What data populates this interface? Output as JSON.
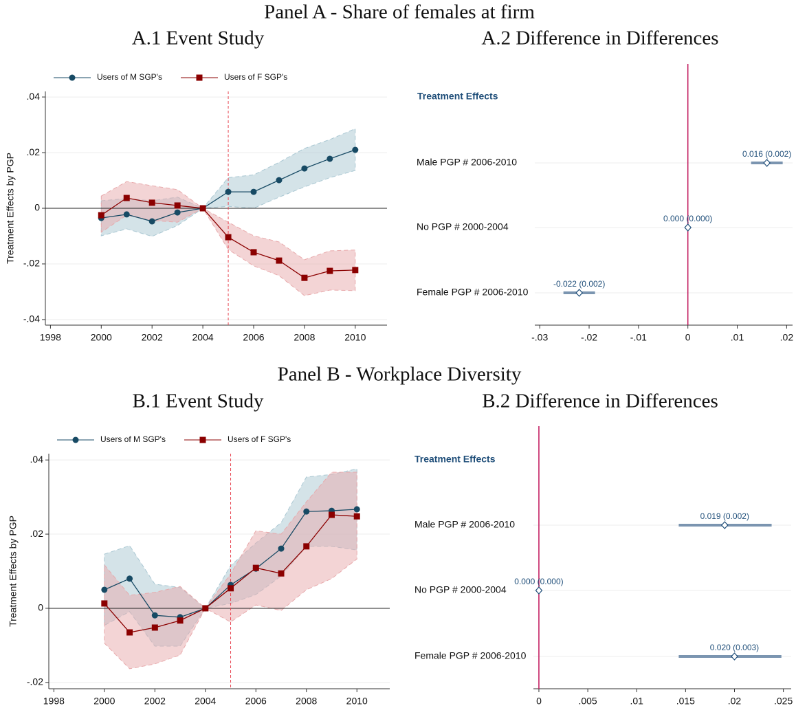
{
  "panels": [
    {
      "title": "Panel A - Share of females at firm"
    },
    {
      "title": "Panel B - Workplace Diversity"
    }
  ],
  "chart_data": [
    {
      "type": "event_study",
      "title": "A.1 Event Study",
      "y_label": "Treatment Effects by PGP",
      "x": [
        2000,
        2001,
        2002,
        2003,
        2004,
        2005,
        2006,
        2007,
        2008,
        2009,
        2010
      ],
      "series": [
        {
          "name": "Users of M SGP's",
          "color": "#174a64",
          "band_color": "#a9c7d2",
          "marker": "circle",
          "values": [
            -0.0035,
            -0.0022,
            -0.0047,
            -0.0015,
            0,
            0.0059,
            0.0059,
            0.0101,
            0.0143,
            0.0178,
            0.021
          ],
          "lower": [
            -0.0099,
            -0.0074,
            -0.0101,
            -0.0062,
            0,
            0.0007,
            0,
            0.004,
            0.0077,
            0.011,
            0.0136
          ],
          "upper": [
            0.0027,
            0.0035,
            0.0027,
            0.004,
            0,
            0.011,
            0.012,
            0.0165,
            0.0215,
            0.0247,
            0.0286
          ]
        },
        {
          "name": "Users of F SGP's",
          "color": "#8b0000",
          "band_color": "#e8a9ab",
          "marker": "square",
          "values": [
            -0.0025,
            0.0037,
            0.002,
            0.001,
            0,
            -0.0104,
            -0.0158,
            -0.0188,
            -0.025,
            -0.0225,
            -0.0222
          ],
          "lower": [
            -0.0086,
            -0.0025,
            -0.0044,
            -0.005,
            0,
            -0.0148,
            -0.0207,
            -0.0242,
            -0.0314,
            -0.0294,
            -0.0296
          ],
          "upper": [
            0.0044,
            0.0096,
            0.0081,
            0.0067,
            0,
            -0.005,
            -0.0099,
            -0.0121,
            -0.0185,
            -0.0153,
            -0.015
          ]
        }
      ],
      "xlim": [
        1997.8,
        2011.25
      ],
      "xticks": [
        1998,
        2000,
        2002,
        2004,
        2006,
        2008,
        2010
      ],
      "ylim": [
        -0.042,
        0.042
      ],
      "yticks": [
        {
          "value": 0.04,
          "label": ".04"
        },
        {
          "value": 0.02,
          "label": ".02"
        },
        0,
        {
          "value": -0.02,
          "label": "-.02"
        },
        {
          "value": -0.04,
          "label": "-.04"
        }
      ],
      "grid": true,
      "hline": 0,
      "vline": 2005,
      "vline_color": "#e8434f",
      "legend": "top"
    },
    {
      "type": "coefficient",
      "title": "A.2 Difference in Differences",
      "header": "Treatment Effects",
      "categories": [
        "Male PGP # 2006-2010",
        "No PGP # 2000-2004",
        "Female PGP # 2006-2010"
      ],
      "values": [
        0.016,
        0,
        -0.022
      ],
      "value_labels": [
        "0.016 (0.002)",
        "0.000 (0.000)",
        "-0.022 (0.002)"
      ],
      "lower": [
        0.0128,
        0,
        -0.0252
      ],
      "upper": [
        0.0192,
        0,
        -0.0188
      ],
      "color": "#7b95b0",
      "label_color": "#1f4e79",
      "xlim": [
        -0.031,
        0.0212
      ],
      "xticks": [
        {
          "value": -0.03,
          "label": "-.03"
        },
        {
          "value": -0.02,
          "label": "-.02"
        },
        {
          "value": -0.01,
          "label": "-.01"
        },
        0,
        {
          "value": 0.01,
          "label": ".01"
        },
        {
          "value": 0.02,
          "label": ".02"
        }
      ],
      "grid": true,
      "vline": 0,
      "vline_color": "#c0145a"
    },
    {
      "type": "event_study",
      "title": "B.1 Event Study",
      "y_label": "Treatment Effects by PGP",
      "x": [
        2000,
        2001,
        2002,
        2003,
        2004,
        2005,
        2006,
        2007,
        2008,
        2009,
        2010
      ],
      "series": [
        {
          "name": "Users of M SGP's",
          "color": "#174a64",
          "band_color": "#a9c7d2",
          "marker": "circle",
          "values": [
            0.005,
            0.008,
            -0.0019,
            -0.0024,
            0,
            0.0063,
            0.0107,
            0.0161,
            0.0261,
            0.0263,
            0.0267
          ],
          "lower": [
            -0.0046,
            -0.0009,
            -0.0102,
            -0.0102,
            0,
            0.0013,
            0.0037,
            0.0087,
            0.0167,
            0.0167,
            0.0157
          ],
          "upper": [
            0.0146,
            0.0169,
            0.0065,
            0.0056,
            0,
            0.0115,
            0.0176,
            0.0231,
            0.0354,
            0.0361,
            0.0376
          ]
        },
        {
          "name": "Users of F SGP's",
          "color": "#8b0000",
          "band_color": "#e8a9ab",
          "marker": "square",
          "values": [
            0.0013,
            -0.0065,
            -0.0052,
            -0.0033,
            0,
            0.0054,
            0.0109,
            0.0094,
            0.0167,
            0.0252,
            0.0248
          ],
          "lower": [
            -0.0094,
            -0.0163,
            -0.015,
            -0.0126,
            0,
            -0.0037,
            0.0009,
            -0.0006,
            0.005,
            0.008,
            0.0133
          ],
          "upper": [
            0.0117,
            0.0035,
            0.0043,
            0.0059,
            0,
            0.0093,
            0.0209,
            0.02,
            0.0287,
            0.0367,
            0.0367
          ]
        }
      ],
      "xlim": [
        1997.8,
        2011.3
      ],
      "xticks": [
        1998,
        2000,
        2002,
        2004,
        2006,
        2008,
        2010
      ],
      "ylim": [
        -0.0217,
        0.0417
      ],
      "yticks": [
        {
          "value": 0.04,
          "label": ".04"
        },
        {
          "value": 0.02,
          "label": ".02"
        },
        0,
        {
          "value": -0.02,
          "label": "-.02"
        }
      ],
      "grid": true,
      "hline": 0,
      "vline": 2005,
      "vline_color": "#e8434f",
      "legend": "top"
    },
    {
      "type": "coefficient",
      "title": "B.2 Difference in Differences",
      "header": "Treatment Effects",
      "categories": [
        "Male PGP # 2006-2010",
        "No PGP # 2000-2004",
        "Female PGP # 2006-2010"
      ],
      "values": [
        0.019,
        0,
        0.02
      ],
      "value_labels": [
        "0.019 (0.002)",
        "0.000 (0.000)",
        "0.020 (0.003)"
      ],
      "lower": [
        0.0143,
        0,
        0.0143
      ],
      "upper": [
        0.0238,
        0,
        0.0248
      ],
      "color": "#7b95b0",
      "label_color": "#1f4e79",
      "xlim": [
        -0.00056,
        0.0258
      ],
      "xticks": [
        0,
        {
          "value": 0.005,
          "label": ".005"
        },
        {
          "value": 0.01,
          "label": ".01"
        },
        {
          "value": 0.015,
          "label": ".015"
        },
        {
          "value": 0.02,
          "label": ".02"
        },
        {
          "value": 0.025,
          "label": ".025"
        }
      ],
      "grid": true,
      "vline": 0,
      "vline_color": "#c0145a"
    }
  ]
}
